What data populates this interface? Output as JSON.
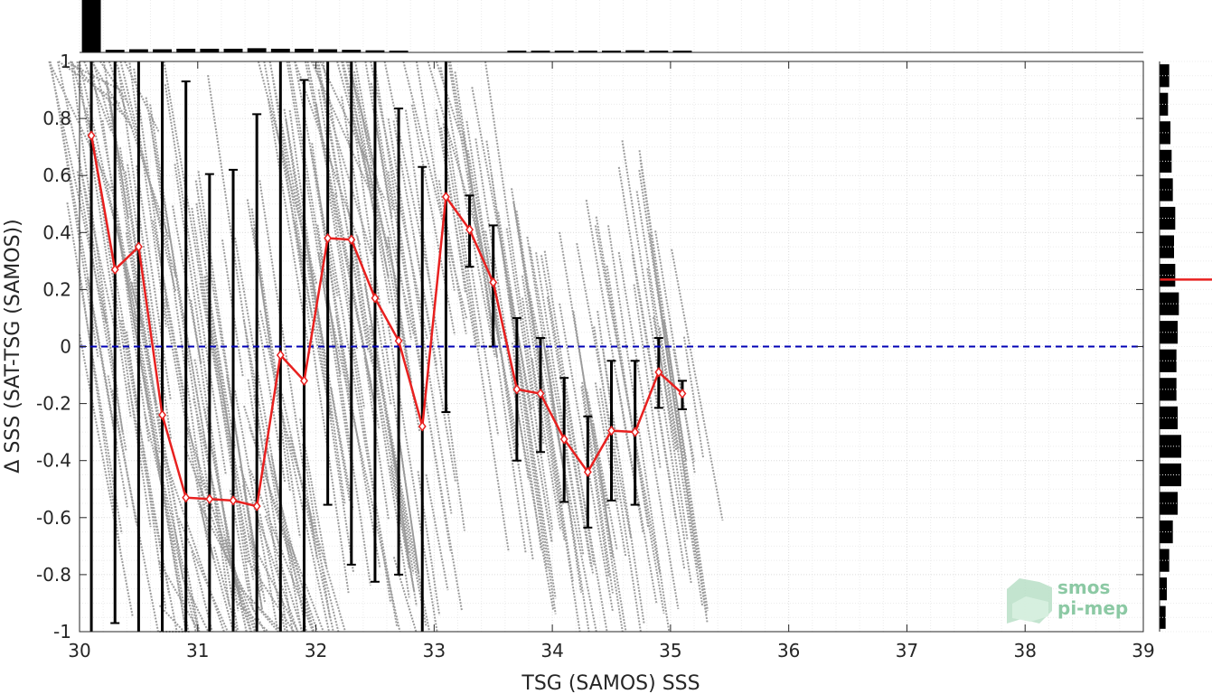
{
  "chart_data": {
    "type": "scatter",
    "xlabel": "TSG (SAMOS) SSS",
    "ylabel": "Δ SSS (SAT-TSG (SAMOS))",
    "xlim": [
      30,
      39
    ],
    "ylim": [
      -1,
      1
    ],
    "x_ticks": [
      "30",
      "31",
      "32",
      "33",
      "34",
      "35",
      "36",
      "37",
      "38",
      "39"
    ],
    "y_ticks": [
      "1",
      "0.8",
      "0.6",
      "0.4",
      "0.2",
      "0",
      "-0.2",
      "-0.4",
      "-0.6",
      "-0.8",
      "-1"
    ],
    "grid": true,
    "zero_line": {
      "y": 0,
      "style": "dashed",
      "color": "#0000b4"
    },
    "binned_mean": {
      "color": "#e8201f",
      "x": [
        30.1,
        30.3,
        30.5,
        30.7,
        30.9,
        31.1,
        31.3,
        31.5,
        31.7,
        31.9,
        32.1,
        32.3,
        32.5,
        32.7,
        32.9,
        33.1,
        33.3,
        33.5,
        33.7,
        33.9,
        34.1,
        34.3,
        34.5,
        34.7,
        34.9,
        35.1
      ],
      "y": [
        0.74,
        0.27,
        0.35,
        -0.24,
        -0.53,
        -0.535,
        -0.54,
        -0.56,
        -0.03,
        -0.12,
        0.38,
        0.375,
        0.17,
        0.02,
        -0.28,
        0.525,
        0.41,
        0.225,
        -0.15,
        -0.165,
        -0.325,
        -0.44,
        -0.295,
        -0.3,
        -0.09,
        -0.165
      ],
      "err_low": [
        -1.0,
        -0.97,
        -1.0,
        -1.0,
        -1.0,
        -1.0,
        -1.0,
        -1.0,
        -1.0,
        -1.0,
        -0.555,
        -0.765,
        -0.825,
        -0.8,
        -1.0,
        -0.23,
        0.28,
        0.0,
        -0.4,
        -0.37,
        -0.545,
        -0.635,
        -0.54,
        -0.555,
        -0.215,
        -0.22
      ],
      "err_high": [
        1.0,
        1.0,
        1.0,
        1.0,
        0.93,
        0.605,
        0.62,
        0.815,
        1.0,
        0.935,
        1.0,
        1.0,
        1.0,
        0.835,
        0.63,
        1.0,
        0.53,
        0.425,
        0.1,
        0.03,
        -0.11,
        -0.245,
        -0.05,
        -0.05,
        0.03,
        -0.12
      ]
    },
    "scatter_color": "#8a8a8a",
    "top_histogram": {
      "x": [
        30.1,
        30.3,
        30.5,
        30.7,
        30.9,
        31.1,
        31.3,
        31.5,
        31.7,
        31.9,
        32.1,
        32.3,
        32.5,
        32.7,
        32.9,
        33.1,
        33.3,
        33.5,
        33.7,
        33.9,
        34.1,
        34.3,
        34.5,
        34.7,
        34.9,
        35.1
      ],
      "counts": [
        100,
        5,
        6,
        6,
        7,
        7,
        7,
        8,
        7,
        7,
        6,
        5,
        4,
        3,
        0,
        0,
        0,
        0,
        1,
        2,
        2,
        1,
        3,
        4,
        3,
        1
      ]
    },
    "right_histogram": {
      "y": [
        0.95,
        0.85,
        0.75,
        0.65,
        0.55,
        0.45,
        0.35,
        0.25,
        0.15,
        0.05,
        -0.05,
        -0.15,
        -0.25,
        -0.35,
        -0.45,
        -0.55,
        -0.65,
        -0.75,
        -0.85,
        -0.95
      ],
      "counts": [
        8,
        7,
        9,
        10,
        11,
        13,
        12,
        13,
        16,
        15,
        14,
        14,
        15,
        18,
        18,
        15,
        11,
        8,
        6,
        5
      ],
      "mean_marker": {
        "y": 0.235,
        "color": "#e8201f"
      }
    },
    "logo": {
      "line1": "smos",
      "line2": "pi-mep"
    }
  }
}
